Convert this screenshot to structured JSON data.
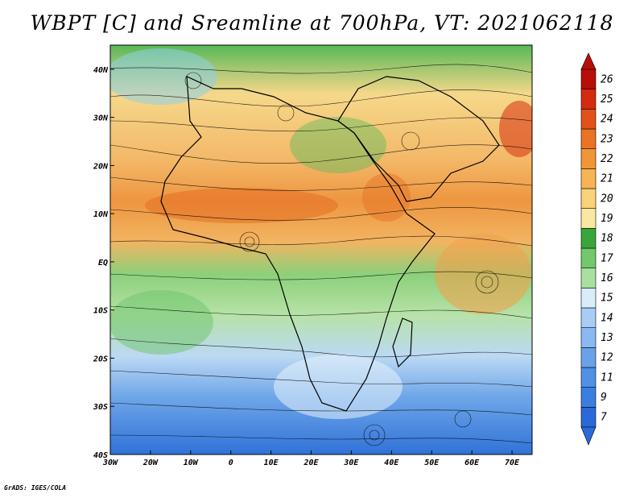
{
  "title": "WBPT [C] and Sreamline at 700hPa, VT: 2021062118",
  "credit": "GrADS: IGES/COLA",
  "map": {
    "lon_labels": [
      "30W",
      "20W",
      "10W",
      "0",
      "10E",
      "20E",
      "30E",
      "40E",
      "50E",
      "60E",
      "70E"
    ],
    "lat_labels": [
      "40N",
      "30N",
      "20N",
      "10N",
      "EQ",
      "10S",
      "20S",
      "30S",
      "40S"
    ],
    "lon_range": [
      -30,
      75
    ],
    "lat_range": [
      -40,
      45
    ]
  },
  "colorbar": {
    "labels": [
      "7",
      "9",
      "11",
      "12",
      "13",
      "14",
      "15",
      "16",
      "17",
      "18",
      "19",
      "20",
      "21",
      "22",
      "23",
      "24",
      "25",
      "26"
    ],
    "colors": [
      "#2a6ad8",
      "#3a7ee0",
      "#5090e6",
      "#6aa2ea",
      "#8ab8f0",
      "#a8ccf4",
      "#d8ecfa",
      "#a8e0a0",
      "#72c86a",
      "#3aa63a",
      "#fbe8a0",
      "#fad27a",
      "#f6b454",
      "#f09636",
      "#ea7424",
      "#e25218",
      "#d32a10",
      "#b80e08"
    ]
  }
}
